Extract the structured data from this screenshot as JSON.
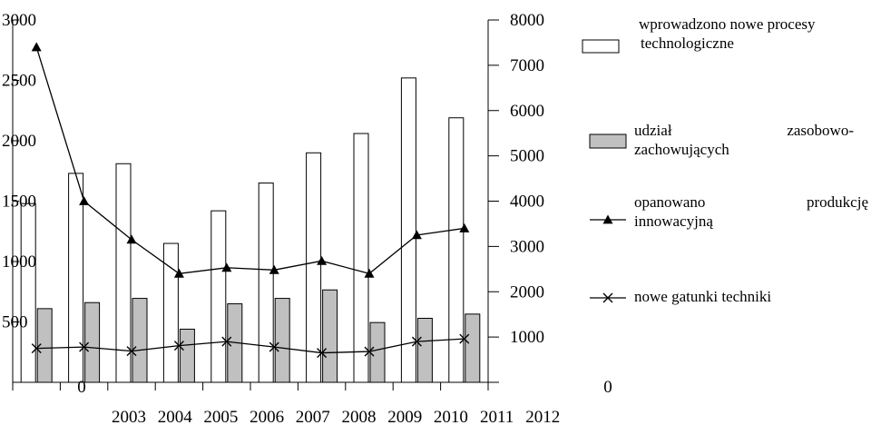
{
  "chart_data": {
    "type": "bar",
    "categories": [
      "2003",
      "2004",
      "2005",
      "2006",
      "2007",
      "2008",
      "2009",
      "2010",
      "2011",
      "2012"
    ],
    "x_tick_labels": [
      "2003",
      "2004",
      "2005",
      "2006",
      "2007",
      "2008",
      "2009",
      "2010",
      "2011",
      "2012"
    ],
    "left_axis": {
      "ticks": [
        "0",
        "500",
        "1000",
        "1500",
        "2000",
        "2500",
        "3000"
      ],
      "ylim": [
        0,
        3000
      ]
    },
    "right_axis": {
      "ticks": [
        "0",
        "1000",
        "2000",
        "3000",
        "4000",
        "5000",
        "6000",
        "7000",
        "8000"
      ],
      "ylim": [
        0,
        8000
      ]
    },
    "series": [
      {
        "name": "wprowadzono nowe procesy technologiczne",
        "kind": "bar",
        "axis": "left",
        "color": "#ffffff",
        "values": [
          1480,
          1730,
          1810,
          1150,
          1420,
          1650,
          1900,
          2060,
          2520,
          2190
        ]
      },
      {
        "name": "udział zasobowo-zachowujących",
        "kind": "bar",
        "axis": "left",
        "color": "#c0c0c0",
        "values": [
          610,
          660,
          695,
          440,
          650,
          695,
          765,
          495,
          530,
          565
        ]
      },
      {
        "name": "opanowano produkcję innowacyjną",
        "kind": "line",
        "marker": "triangle",
        "axis": "right",
        "values": [
          7400,
          4000,
          3150,
          2400,
          2530,
          2480,
          2680,
          2400,
          3250,
          3400
        ]
      },
      {
        "name": "nowe gatunki techniki",
        "kind": "line",
        "marker": "x",
        "axis": "right",
        "values": [
          750,
          780,
          690,
          810,
          900,
          780,
          650,
          680,
          900,
          960
        ]
      }
    ],
    "legend": {
      "placement": "right",
      "items": [
        {
          "lines": [
            "wprowadzono nowe procesy",
            "technologiczne"
          ]
        },
        {
          "lines": [
            "udział zasobowo-",
            "zachowujących"
          ]
        },
        {
          "lines": [
            "opanowano produkcję",
            "innowacyjną"
          ]
        },
        {
          "lines": [
            "nowe gatunki techniki"
          ]
        }
      ]
    }
  }
}
